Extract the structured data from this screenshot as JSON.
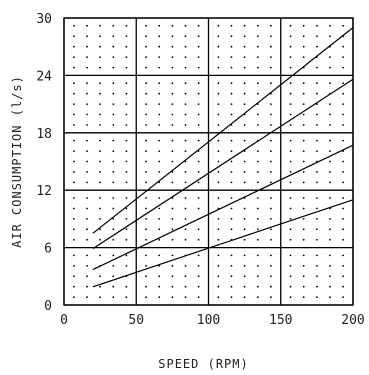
{
  "chart_data": {
    "type": "line",
    "xlabel": "SPEED (RPM)",
    "ylabel": "AIR CONSUMPTION (l/s)",
    "xlim": [
      0,
      200
    ],
    "ylim": [
      0,
      30
    ],
    "x_ticks": [
      0,
      50,
      100,
      150,
      200
    ],
    "y_ticks": [
      0,
      6,
      12,
      18,
      24,
      30
    ],
    "grid": true,
    "dotted_fill": true,
    "series": [
      {
        "x": [
          20,
          200
        ],
        "y": [
          7.5,
          29.0
        ]
      },
      {
        "x": [
          20,
          200
        ],
        "y": [
          5.9,
          23.6
        ]
      },
      {
        "x": [
          20,
          200
        ],
        "y": [
          3.7,
          16.7
        ]
      },
      {
        "x": [
          20,
          200
        ],
        "y": [
          1.9,
          11.0
        ]
      }
    ]
  }
}
